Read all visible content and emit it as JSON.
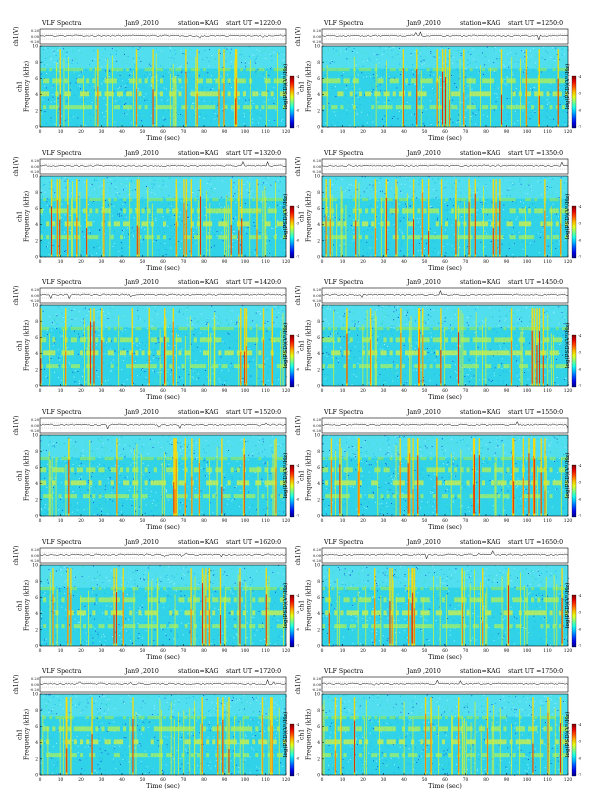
{
  "chart_data": [
    {
      "type": "heatmap",
      "header": "VLF Spectra",
      "date": "Jan9 ,2010",
      "station": "station=KAG",
      "start": "start  UT  =1220:0",
      "amp_ylabel": "ch1(V)",
      "amp_ticks": [
        "0.20",
        "0.00",
        "-0.20"
      ],
      "ylabel": "ch1\nFrequency  (kHz)",
      "y_ticks": [
        "0",
        "2",
        "4",
        "6",
        "8",
        "10"
      ],
      "ylim": [
        0,
        10
      ],
      "xlabel": "Time  (sec)",
      "x_ticks": [
        "0",
        "10",
        "20",
        "30",
        "40",
        "50",
        "60",
        "70",
        "80",
        "90",
        "100",
        "110",
        "120"
      ],
      "xlim": [
        0,
        120
      ],
      "colorbar_label": "log(PSD)(V²/Hz)",
      "colorbar_ticks": [
        "-4",
        "-5",
        "-6",
        "-7"
      ]
    },
    {
      "type": "heatmap",
      "header": "VLF Spectra",
      "date": "Jan9 ,2010",
      "station": "station=KAG",
      "start": "start  UT  =1250:0",
      "amp_ylabel": "ch1(V)",
      "amp_ticks": [
        "0.20",
        "0.00",
        "-0.20"
      ],
      "ylabel": "ch1\nFrequency  (kHz)",
      "y_ticks": [
        "0",
        "2",
        "4",
        "6",
        "8",
        "10"
      ],
      "ylim": [
        0,
        10
      ],
      "xlabel": "Time  (sec)",
      "x_ticks": [
        "0",
        "10",
        "20",
        "30",
        "40",
        "50",
        "60",
        "70",
        "80",
        "90",
        "100",
        "110",
        "120"
      ],
      "xlim": [
        0,
        120
      ],
      "colorbar_label": "log(PSD)(V²/Hz)",
      "colorbar_ticks": [
        "-4",
        "-5",
        "-6",
        "-7"
      ]
    },
    {
      "type": "heatmap",
      "header": "VLF Spectra",
      "date": "Jan9 ,2010",
      "station": "station=KAG",
      "start": "start  UT  =1320:0",
      "amp_ylabel": "ch1(V)",
      "amp_ticks": [
        "0.20",
        "0.00",
        "-0.20"
      ],
      "ylabel": "ch1\nFrequency  (kHz)",
      "y_ticks": [
        "0",
        "2",
        "4",
        "6",
        "8",
        "10"
      ],
      "ylim": [
        0,
        10
      ],
      "xlabel": "Time  (sec)",
      "x_ticks": [
        "0",
        "10",
        "20",
        "30",
        "40",
        "50",
        "60",
        "70",
        "80",
        "90",
        "100",
        "110",
        "120"
      ],
      "xlim": [
        0,
        120
      ],
      "colorbar_label": "log(PSD)(V²/Hz)",
      "colorbar_ticks": [
        "-4",
        "-5",
        "-6",
        "-7"
      ]
    },
    {
      "type": "heatmap",
      "header": "VLF Spectra",
      "date": "Jan9 ,2010",
      "station": "station=KAG",
      "start": "start  UT  =1350:0",
      "amp_ylabel": "ch1(V)",
      "amp_ticks": [
        "0.20",
        "0.00",
        "-0.20"
      ],
      "ylabel": "ch1\nFrequency  (kHz)",
      "y_ticks": [
        "0",
        "2",
        "4",
        "6",
        "8",
        "10"
      ],
      "ylim": [
        0,
        10
      ],
      "xlabel": "Time  (sec)",
      "x_ticks": [
        "0",
        "10",
        "20",
        "30",
        "40",
        "50",
        "60",
        "70",
        "80",
        "90",
        "100",
        "110",
        "120"
      ],
      "xlim": [
        0,
        120
      ],
      "colorbar_label": "log(PSD)(V²/Hz)",
      "colorbar_ticks": [
        "-4",
        "-5",
        "-6",
        "-7"
      ]
    },
    {
      "type": "heatmap",
      "header": "VLF Spectra",
      "date": "Jan9 ,2010",
      "station": "station=KAG",
      "start": "start  UT  =1420:0",
      "amp_ylabel": "ch1(V)",
      "amp_ticks": [
        "0.20",
        "0.00",
        "-0.20"
      ],
      "ylabel": "ch1\nFrequency  (kHz)",
      "y_ticks": [
        "0",
        "2",
        "4",
        "6",
        "8",
        "10"
      ],
      "ylim": [
        0,
        10
      ],
      "xlabel": "Time  (sec)",
      "x_ticks": [
        "0",
        "10",
        "20",
        "30",
        "40",
        "50",
        "60",
        "70",
        "80",
        "90",
        "100",
        "110",
        "120"
      ],
      "xlim": [
        0,
        120
      ],
      "colorbar_label": "log(PSD)(V²/Hz)",
      "colorbar_ticks": [
        "-4",
        "-5",
        "-6",
        "-7"
      ]
    },
    {
      "type": "heatmap",
      "header": "VLF Spectra",
      "date": "Jan9 ,2010",
      "station": "station=KAG",
      "start": "start  UT  =1450:0",
      "amp_ylabel": "ch1(V)",
      "amp_ticks": [
        "0.20",
        "0.00",
        "-0.20"
      ],
      "ylabel": "ch1\nFrequency  (kHz)",
      "y_ticks": [
        "0",
        "2",
        "4",
        "6",
        "8",
        "10"
      ],
      "ylim": [
        0,
        10
      ],
      "xlabel": "Time  (sec)",
      "x_ticks": [
        "0",
        "10",
        "20",
        "30",
        "40",
        "50",
        "60",
        "70",
        "80",
        "90",
        "100",
        "110",
        "120"
      ],
      "xlim": [
        0,
        120
      ],
      "colorbar_label": "log(PSD)(V²/Hz)",
      "colorbar_ticks": [
        "-4",
        "-5",
        "-6",
        "-7"
      ]
    },
    {
      "type": "heatmap",
      "header": "VLF Spectra",
      "date": "Jan9 ,2010",
      "station": "station=KAG",
      "start": "start  UT  =1520:0",
      "amp_ylabel": "ch1(V)",
      "amp_ticks": [
        "0.20",
        "0.00",
        "-0.20"
      ],
      "ylabel": "ch1\nFrequency  (kHz)",
      "y_ticks": [
        "0",
        "2",
        "4",
        "6",
        "8",
        "10"
      ],
      "ylim": [
        0,
        10
      ],
      "xlabel": "Time  (sec)",
      "x_ticks": [
        "0",
        "10",
        "20",
        "30",
        "40",
        "50",
        "60",
        "70",
        "80",
        "90",
        "100",
        "110",
        "120"
      ],
      "xlim": [
        0,
        120
      ],
      "colorbar_label": "log(PSD)(V²/Hz)",
      "colorbar_ticks": [
        "-4",
        "-5",
        "-6",
        "-7"
      ]
    },
    {
      "type": "heatmap",
      "header": "VLF Spectra",
      "date": "Jan9 ,2010",
      "station": "station=KAG",
      "start": "start  UT  =1550:0",
      "amp_ylabel": "ch1(V)",
      "amp_ticks": [
        "0.20",
        "0.00",
        "-0.20"
      ],
      "ylabel": "ch1\nFrequency  (kHz)",
      "y_ticks": [
        "0",
        "2",
        "4",
        "6",
        "8",
        "10"
      ],
      "ylim": [
        0,
        10
      ],
      "xlabel": "Time  (sec)",
      "x_ticks": [
        "0",
        "10",
        "20",
        "30",
        "40",
        "50",
        "60",
        "70",
        "80",
        "90",
        "100",
        "110",
        "120"
      ],
      "xlim": [
        0,
        120
      ],
      "colorbar_label": "log(PSD)(V²/Hz)",
      "colorbar_ticks": [
        "-4",
        "-5",
        "-6",
        "-7"
      ]
    },
    {
      "type": "heatmap",
      "header": "VLF Spectra",
      "date": "Jan9 ,2010",
      "station": "station=KAG",
      "start": "start  UT  =1620:0",
      "amp_ylabel": "ch1(V)",
      "amp_ticks": [
        "0.20",
        "0.00",
        "-0.20"
      ],
      "ylabel": "ch1\nFrequency  (kHz)",
      "y_ticks": [
        "0",
        "2",
        "4",
        "6",
        "8",
        "10"
      ],
      "ylim": [
        0,
        10
      ],
      "xlabel": "Time  (sec)",
      "x_ticks": [
        "0",
        "10",
        "20",
        "30",
        "40",
        "50",
        "60",
        "70",
        "80",
        "90",
        "100",
        "110",
        "120"
      ],
      "xlim": [
        0,
        120
      ],
      "colorbar_label": "log(PSD)(V²/Hz)",
      "colorbar_ticks": [
        "-4",
        "-5",
        "-6",
        "-7"
      ]
    },
    {
      "type": "heatmap",
      "header": "VLF Spectra",
      "date": "Jan9 ,2010",
      "station": "station=KAG",
      "start": "start  UT  =1650:0",
      "amp_ylabel": "ch1(V)",
      "amp_ticks": [
        "0.20",
        "0.00",
        "-0.20"
      ],
      "ylabel": "ch1\nFrequency  (kHz)",
      "y_ticks": [
        "0",
        "2",
        "4",
        "6",
        "8",
        "10"
      ],
      "ylim": [
        0,
        10
      ],
      "xlabel": "Time  (sec)",
      "x_ticks": [
        "0",
        "10",
        "20",
        "30",
        "40",
        "50",
        "60",
        "70",
        "80",
        "90",
        "100",
        "110",
        "120"
      ],
      "xlim": [
        0,
        120
      ],
      "colorbar_label": "log(PSD)(V²/Hz)",
      "colorbar_ticks": [
        "-4",
        "-5",
        "-6",
        "-7"
      ]
    },
    {
      "type": "heatmap",
      "header": "VLF Spectra",
      "date": "Jan9 ,2010",
      "station": "station=KAG",
      "start": "start  UT  =1720:0",
      "amp_ylabel": "ch1(V)",
      "amp_ticks": [
        "0.20",
        "0.00",
        "-0.20"
      ],
      "ylabel": "ch1\nFrequency  (kHz)",
      "y_ticks": [
        "0",
        "2",
        "4",
        "6",
        "8",
        "10"
      ],
      "ylim": [
        0,
        10
      ],
      "xlabel": "Time  (sec)",
      "x_ticks": [
        "0",
        "10",
        "20",
        "30",
        "40",
        "50",
        "60",
        "70",
        "80",
        "90",
        "100",
        "110",
        "120"
      ],
      "xlim": [
        0,
        120
      ],
      "colorbar_label": "log(PSD)(V²/Hz)",
      "colorbar_ticks": [
        "-4",
        "-5",
        "-6",
        "-7"
      ]
    },
    {
      "type": "heatmap",
      "header": "VLF Spectra",
      "date": "Jan9 ,2010",
      "station": "station=KAG",
      "start": "start  UT  =1750:0",
      "amp_ylabel": "ch1(V)",
      "amp_ticks": [
        "0.20",
        "0.00",
        "-0.20"
      ],
      "ylabel": "ch1\nFrequency  (kHz)",
      "y_ticks": [
        "0",
        "2",
        "4",
        "6",
        "8",
        "10"
      ],
      "ylim": [
        0,
        10
      ],
      "xlabel": "Time  (sec)",
      "x_ticks": [
        "0",
        "10",
        "20",
        "30",
        "40",
        "50",
        "60",
        "70",
        "80",
        "90",
        "100",
        "110",
        "120"
      ],
      "xlim": [
        0,
        120
      ],
      "colorbar_label": "log(PSD)(V²/Hz)",
      "colorbar_ticks": [
        "-4",
        "-5",
        "-6",
        "-7"
      ]
    }
  ]
}
